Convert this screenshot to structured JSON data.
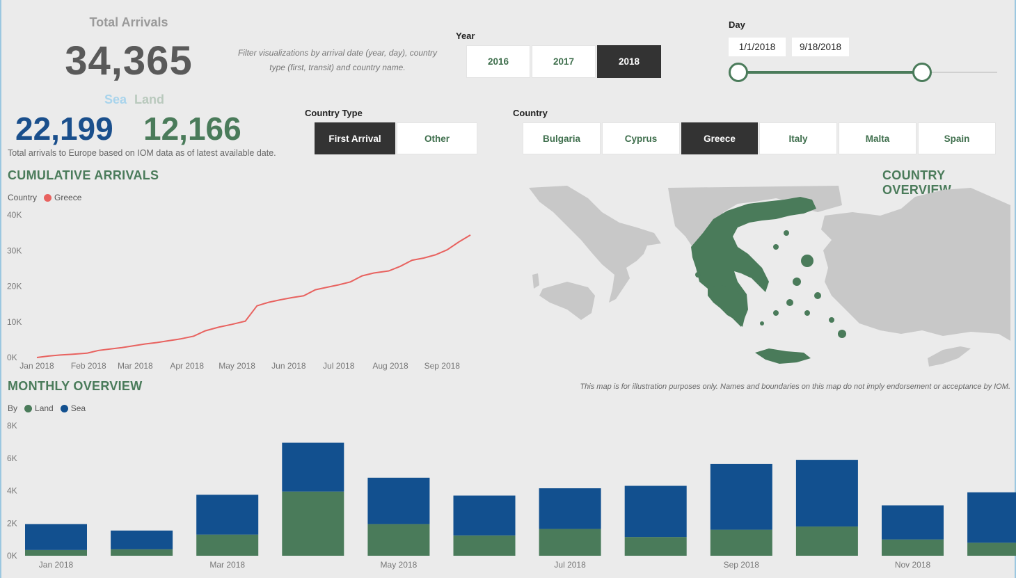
{
  "kpi": {
    "title": "Total Arrivals",
    "total": "34,365",
    "sea_label": "Sea",
    "land_label": "Land",
    "sea_value": "22,199",
    "land_value": "12,166",
    "note": "Total arrivals to Europe based on IOM data as of latest available date."
  },
  "filter_note": "Filter visualizations by arrival date (year, day), country type (first, transit) and country name.",
  "year_slicer": {
    "label": "Year",
    "options": [
      "2016",
      "2017",
      "2018"
    ],
    "selected": "2018"
  },
  "day_slicer": {
    "label": "Day",
    "start": "1/1/2018",
    "end": "9/18/2018"
  },
  "country_type_slicer": {
    "label": "Country Type",
    "options": [
      "First Arrival",
      "Other"
    ],
    "selected": "First Arrival"
  },
  "country_slicer": {
    "label": "Country",
    "options": [
      "Bulgaria",
      "Cyprus",
      "Greece",
      "Italy",
      "Malta",
      "Spain"
    ],
    "selected": "Greece"
  },
  "sections": {
    "cumulative": "CUMULATIVE ARRIVALS",
    "country_overview": "COUNTRY OVERVIEW",
    "monthly": "MONTHLY OVERVIEW"
  },
  "map": {
    "disclaimer": "This map is for illustration purposes only. Names and boundaries on this map do not imply endorsement or acceptance by IOM.",
    "highlight_color": "#4a7b5a",
    "base_color": "#c8c8c8"
  },
  "colors": {
    "line": "#e8625f",
    "sea": "#12508f",
    "land": "#4a7b5a",
    "accent": "#4a7b5a"
  },
  "chart_data": [
    {
      "type": "line",
      "title": "CUMULATIVE ARRIVALS",
      "legend_title": "Country",
      "series": [
        {
          "name": "Greece",
          "x": [
            "2018-01-01",
            "2018-01-08",
            "2018-01-15",
            "2018-01-22",
            "2018-01-31",
            "2018-02-07",
            "2018-02-14",
            "2018-02-21",
            "2018-02-28",
            "2018-03-07",
            "2018-03-14",
            "2018-03-21",
            "2018-03-28",
            "2018-04-05",
            "2018-04-12",
            "2018-04-20",
            "2018-04-28",
            "2018-05-06",
            "2018-05-13",
            "2018-05-20",
            "2018-05-27",
            "2018-06-03",
            "2018-06-10",
            "2018-06-17",
            "2018-06-24",
            "2018-07-01",
            "2018-07-08",
            "2018-07-15",
            "2018-07-22",
            "2018-07-31",
            "2018-08-07",
            "2018-08-14",
            "2018-08-21",
            "2018-08-28",
            "2018-09-04",
            "2018-09-11",
            "2018-09-18"
          ],
          "y": [
            0,
            400,
            700,
            900,
            1200,
            2000,
            2400,
            2800,
            3300,
            3800,
            4200,
            4700,
            5200,
            6000,
            7500,
            8500,
            9300,
            10200,
            14500,
            15500,
            16200,
            16800,
            17300,
            19000,
            19700,
            20400,
            21200,
            22900,
            23700,
            24300,
            25600,
            27300,
            27900,
            28800,
            30200,
            32400,
            34365
          ]
        }
      ],
      "ylim": [
        0,
        40000
      ],
      "yticks": [
        "0K",
        "10K",
        "20K",
        "30K",
        "40K"
      ],
      "xticks": [
        "Jan 2018",
        "Feb 2018",
        "Mar 2018",
        "Apr 2018",
        "May 2018",
        "Jun 2018",
        "Jul 2018",
        "Aug 2018",
        "Sep 2018"
      ],
      "legend_placement": "top-left",
      "grid": false
    },
    {
      "type": "bar",
      "title": "MONTHLY OVERVIEW",
      "stacked": true,
      "legend_title": "By",
      "categories": [
        "Jan 2018",
        "Feb 2018",
        "Mar 2018",
        "Apr 2018",
        "May 2018",
        "Jun 2018",
        "Jul 2018",
        "Aug 2018",
        "Sep 2018",
        "Oct 2018",
        "Nov 2018",
        "Dec 2018"
      ],
      "xtick_labels": [
        "Jan 2018",
        "",
        "Mar 2018",
        "",
        "May 2018",
        "",
        "Jul 2018",
        "",
        "Sep 2018",
        "",
        "Nov 2018",
        ""
      ],
      "series": [
        {
          "name": "Land",
          "values": [
            350,
            400,
            1300,
            3950,
            1950,
            1250,
            1650,
            1150,
            1600,
            1800,
            1000,
            800
          ]
        },
        {
          "name": "Sea",
          "values": [
            1600,
            1150,
            2450,
            3000,
            2850,
            2450,
            2500,
            3150,
            4050,
            4100,
            2100,
            3100
          ]
        }
      ],
      "ylim": [
        0,
        8000
      ],
      "yticks": [
        "0K",
        "2K",
        "4K",
        "6K",
        "8K"
      ],
      "legend_placement": "top-left",
      "grid": false
    }
  ]
}
